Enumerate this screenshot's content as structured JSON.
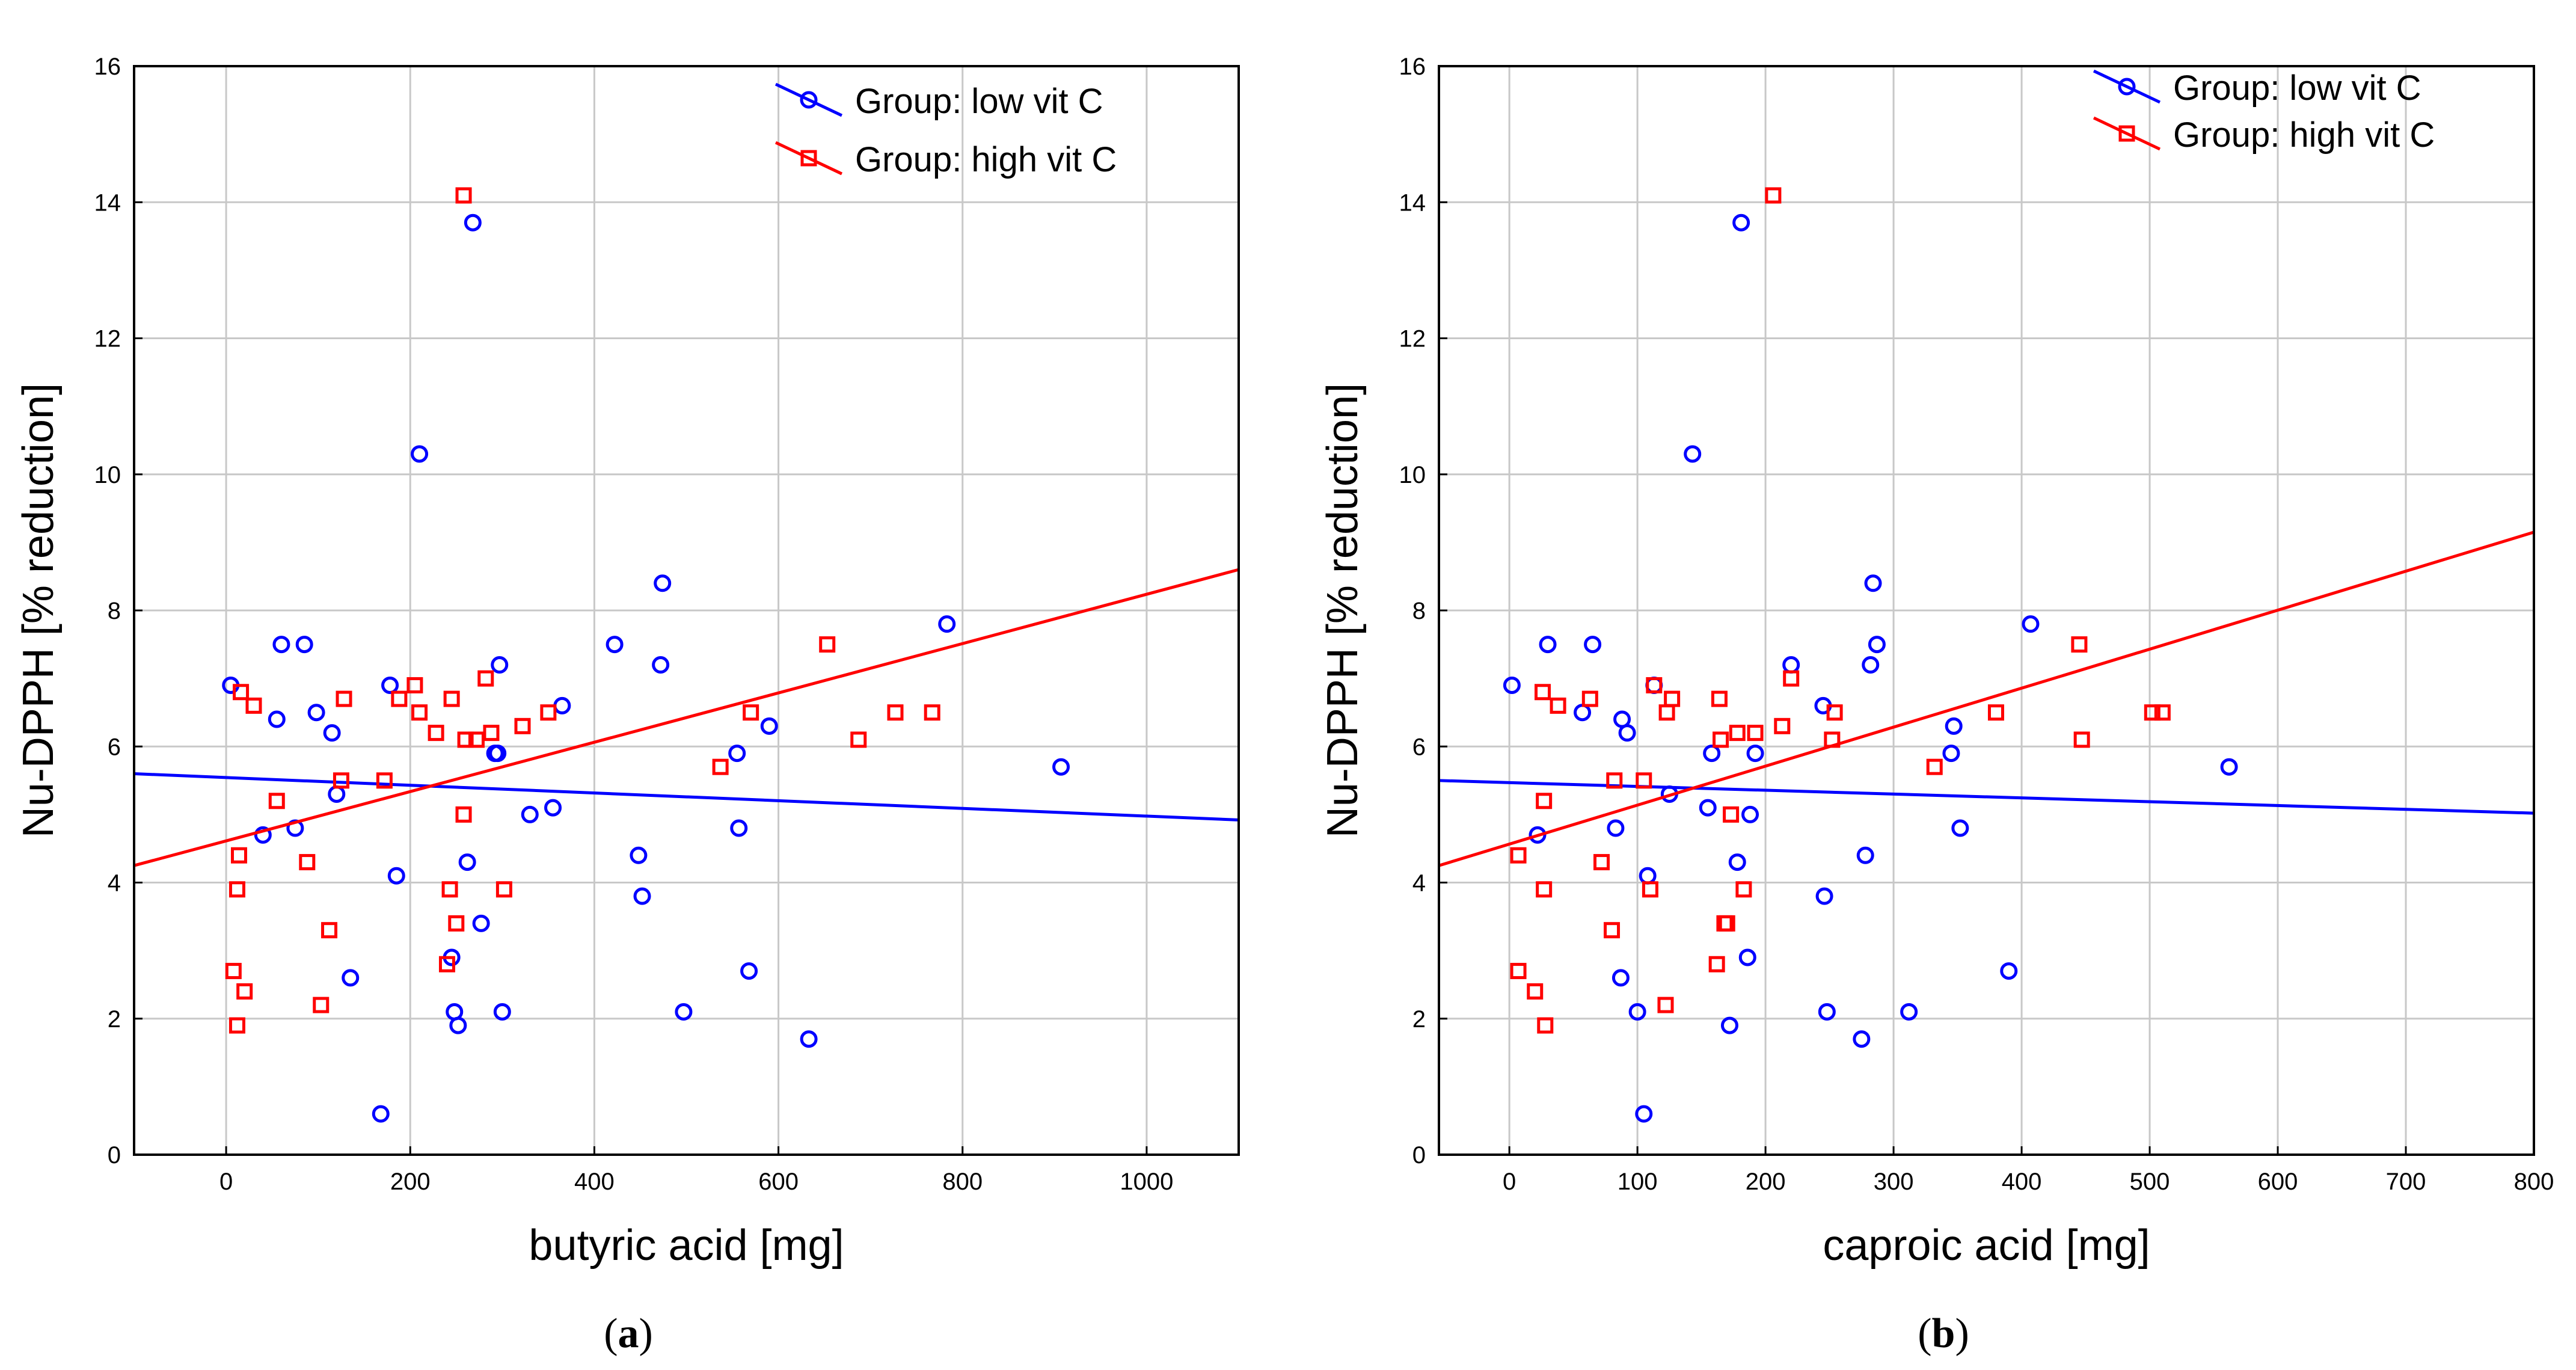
{
  "colors": {
    "low": "#0000ff",
    "high": "#ff0000",
    "grid": "#c8c8c8",
    "axis": "#000000"
  },
  "chart_data": [
    {
      "type": "scatter",
      "caption_open": "(",
      "caption": "a",
      "caption_close": ")",
      "xlabel": "butyric acid [mg]",
      "ylabel": "Nu-DPPH [% reduction]",
      "xlim": [
        -100,
        1100
      ],
      "ylim": [
        0,
        16
      ],
      "xticks": [
        0,
        200,
        400,
        600,
        800,
        1000
      ],
      "yticks": [
        0,
        2,
        4,
        6,
        8,
        10,
        12,
        14,
        16
      ],
      "grid": true,
      "legend_position": "top-right",
      "series": [
        {
          "name": "Group: low vit C",
          "key": "low",
          "marker": "circle",
          "fit": [
            [
              -100,
              5.6
            ],
            [
              1100,
              4.92
            ]
          ],
          "points": [
            [
              5,
              6.9
            ],
            [
              55,
              6.4
            ],
            [
              60,
              7.5
            ],
            [
              85,
              7.5
            ],
            [
              98,
              6.5
            ],
            [
              115,
              6.2
            ],
            [
              120,
              5.3
            ],
            [
              75,
              4.8
            ],
            [
              40,
              4.7
            ],
            [
              135,
              2.6
            ],
            [
              168,
              0.6
            ],
            [
              178,
              6.9
            ],
            [
              185,
              4.1
            ],
            [
              210,
              10.3
            ],
            [
              268,
              13.7
            ],
            [
              245,
              2.9
            ],
            [
              248,
              2.1
            ],
            [
              252,
              1.9
            ],
            [
              262,
              4.3
            ],
            [
              277,
              3.4
            ],
            [
              292,
              5.9
            ],
            [
              295,
              5.9
            ],
            [
              297,
              7.2
            ],
            [
              300,
              2.1
            ],
            [
              330,
              5.0
            ],
            [
              355,
              5.1
            ],
            [
              365,
              6.6
            ],
            [
              422,
              7.5
            ],
            [
              448,
              4.4
            ],
            [
              452,
              3.8
            ],
            [
              472,
              7.2
            ],
            [
              474,
              8.4
            ],
            [
              497,
              2.1
            ],
            [
              555,
              5.9
            ],
            [
              557,
              4.8
            ],
            [
              568,
              2.7
            ],
            [
              590,
              6.3
            ],
            [
              633,
              1.7
            ],
            [
              783,
              7.8
            ],
            [
              907,
              5.7
            ]
          ]
        },
        {
          "name": "Group: high vit C",
          "key": "high",
          "marker": "square",
          "fit": [
            [
              -100,
              4.25
            ],
            [
              1100,
              8.6
            ]
          ],
          "points": [
            [
              8,
              2.7
            ],
            [
              12,
              1.9
            ],
            [
              12,
              3.9
            ],
            [
              14,
              4.4
            ],
            [
              16,
              6.8
            ],
            [
              20,
              2.4
            ],
            [
              30,
              6.6
            ],
            [
              55,
              5.2
            ],
            [
              88,
              4.3
            ],
            [
              103,
              2.2
            ],
            [
              112,
              3.3
            ],
            [
              125,
              5.5
            ],
            [
              128,
              6.7
            ],
            [
              172,
              5.5
            ],
            [
              188,
              6.7
            ],
            [
              205,
              6.9
            ],
            [
              210,
              6.5
            ],
            [
              228,
              6.2
            ],
            [
              240,
              2.8
            ],
            [
              243,
              3.9
            ],
            [
              245,
              6.7
            ],
            [
              250,
              3.4
            ],
            [
              258,
              5.0
            ],
            [
              258,
              14.1
            ],
            [
              260,
              6.1
            ],
            [
              272,
              6.1
            ],
            [
              282,
              7.0
            ],
            [
              288,
              6.2
            ],
            [
              302,
              3.9
            ],
            [
              322,
              6.3
            ],
            [
              350,
              6.5
            ],
            [
              537,
              5.7
            ],
            [
              570,
              6.5
            ],
            [
              653,
              7.5
            ],
            [
              687,
              6.1
            ],
            [
              727,
              6.5
            ],
            [
              767,
              6.5
            ]
          ]
        }
      ]
    },
    {
      "type": "scatter",
      "caption_open": "(",
      "caption": "b",
      "caption_close": ")",
      "xlabel": "caproic acid [mg]",
      "ylabel": "Nu-DPPH [% reduction]",
      "xlim": [
        -55,
        800
      ],
      "ylim": [
        0,
        16
      ],
      "xticks": [
        0,
        100,
        200,
        300,
        400,
        500,
        600,
        700,
        800
      ],
      "yticks": [
        0,
        2,
        4,
        6,
        8,
        10,
        12,
        14,
        16
      ],
      "grid": true,
      "legend_position": "top-right",
      "series": [
        {
          "name": "Group: low vit C",
          "key": "low",
          "marker": "circle",
          "fit": [
            [
              -55,
              5.5
            ],
            [
              800,
              5.02
            ]
          ],
          "points": [
            [
              2,
              6.9
            ],
            [
              22,
              4.7
            ],
            [
              30,
              7.5
            ],
            [
              57,
              6.5
            ],
            [
              65,
              7.5
            ],
            [
              83,
              4.8
            ],
            [
              87,
              2.6
            ],
            [
              88,
              6.4
            ],
            [
              92,
              6.2
            ],
            [
              100,
              2.1
            ],
            [
              105,
              0.6
            ],
            [
              108,
              4.1
            ],
            [
              113,
              6.9
            ],
            [
              125,
              5.3
            ],
            [
              143,
              10.3
            ],
            [
              155,
              5.1
            ],
            [
              158,
              5.9
            ],
            [
              172,
              1.9
            ],
            [
              178,
              4.3
            ],
            [
              181,
              13.7
            ],
            [
              186,
              2.9
            ],
            [
              188,
              5.0
            ],
            [
              192,
              5.9
            ],
            [
              220,
              7.2
            ],
            [
              245,
              6.6
            ],
            [
              246,
              3.8
            ],
            [
              248,
              2.1
            ],
            [
              275,
              1.7
            ],
            [
              278,
              4.4
            ],
            [
              282,
              7.2
            ],
            [
              284,
              8.4
            ],
            [
              287,
              7.5
            ],
            [
              312,
              2.1
            ],
            [
              345,
              5.9
            ],
            [
              347,
              6.3
            ],
            [
              352,
              4.8
            ],
            [
              390,
              2.7
            ],
            [
              407,
              7.8
            ],
            [
              562,
              5.7
            ]
          ]
        },
        {
          "name": "Group: high vit C",
          "key": "high",
          "marker": "square",
          "fit": [
            [
              -55,
              4.25
            ],
            [
              800,
              9.15
            ]
          ],
          "points": [
            [
              7,
              2.7
            ],
            [
              7,
              4.4
            ],
            [
              20,
              2.4
            ],
            [
              26,
              6.8
            ],
            [
              27,
              3.9
            ],
            [
              27,
              5.2
            ],
            [
              28,
              1.9
            ],
            [
              38,
              6.6
            ],
            [
              63,
              6.7
            ],
            [
              72,
              4.3
            ],
            [
              80,
              3.3
            ],
            [
              82,
              5.5
            ],
            [
              105,
              5.5
            ],
            [
              110,
              3.9
            ],
            [
              113,
              6.9
            ],
            [
              122,
              2.2
            ],
            [
              123,
              6.5
            ],
            [
              127,
              6.7
            ],
            [
              162,
              2.8
            ],
            [
              164,
              6.7
            ],
            [
              165,
              6.1
            ],
            [
              168,
              3.4
            ],
            [
              170,
              3.4
            ],
            [
              173,
              5.0
            ],
            [
              178,
              6.2
            ],
            [
              183,
              3.9
            ],
            [
              192,
              6.2
            ],
            [
              206,
              14.1
            ],
            [
              213,
              6.3
            ],
            [
              220,
              7.0
            ],
            [
              252,
              6.1
            ],
            [
              254,
              6.5
            ],
            [
              332,
              5.7
            ],
            [
              380,
              6.5
            ],
            [
              445,
              7.5
            ],
            [
              447,
              6.1
            ],
            [
              502,
              6.5
            ],
            [
              510,
              6.5
            ]
          ]
        }
      ]
    }
  ]
}
